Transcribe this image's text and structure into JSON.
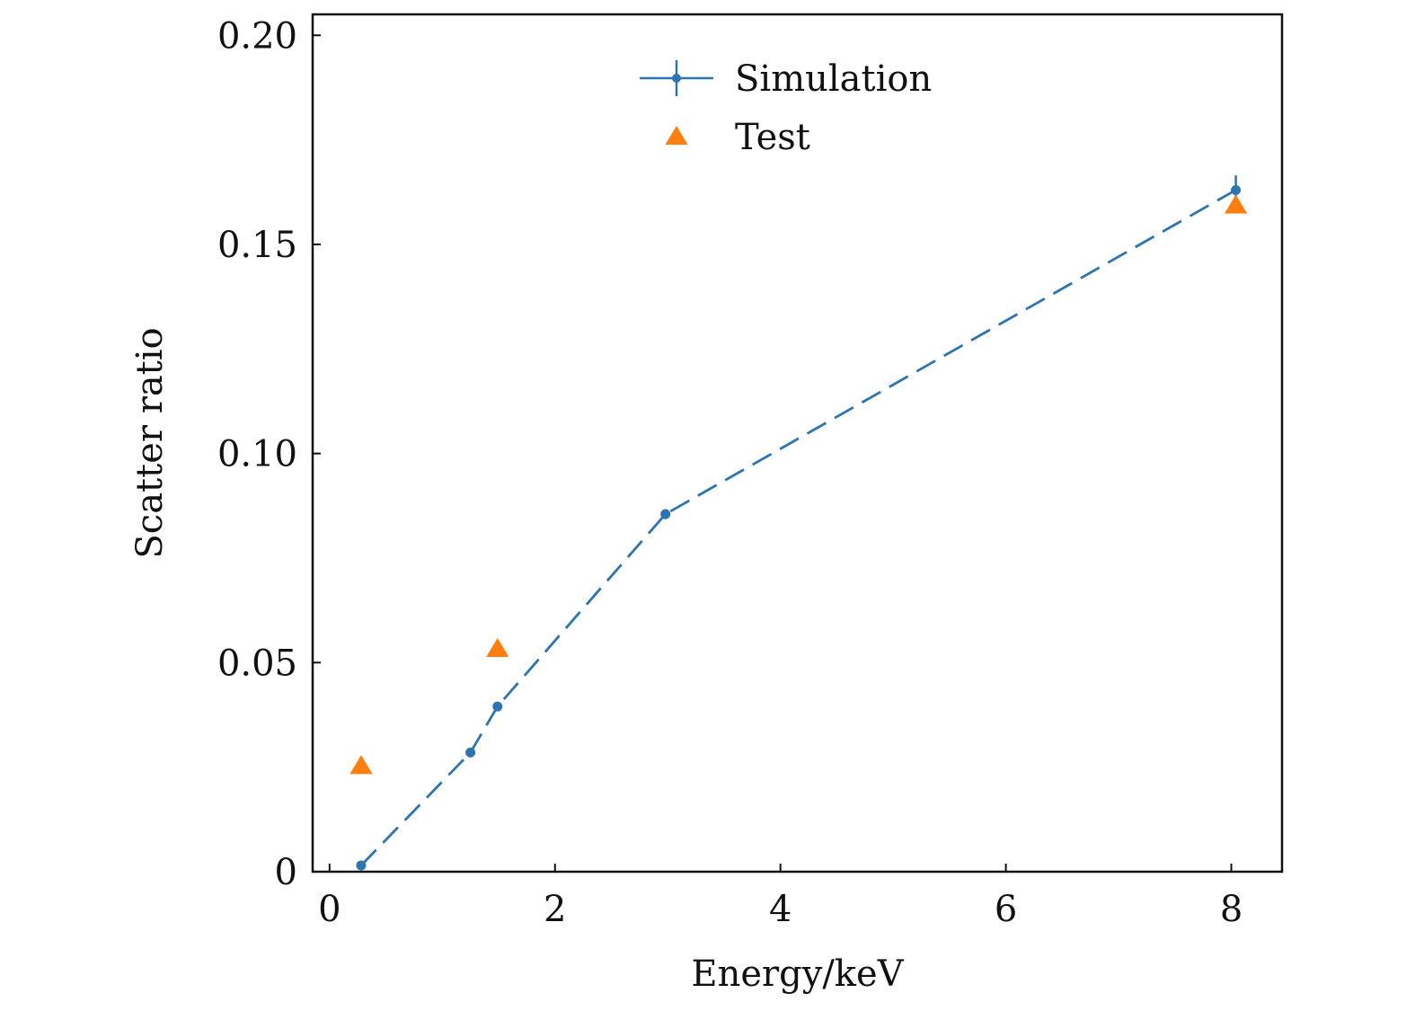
{
  "chart_data": {
    "type": "line",
    "xlabel": "Energy/keV",
    "ylabel": "Scatter ratio",
    "xlim": [
      -0.15,
      8.45
    ],
    "ylim": [
      0,
      0.205
    ],
    "x_ticks": [
      0,
      2,
      4,
      6,
      8
    ],
    "x_tick_labels": [
      "0",
      "2",
      "4",
      "6",
      "8"
    ],
    "y_ticks": [
      0,
      0.05,
      0.1,
      0.15,
      0.2
    ],
    "y_tick_labels": [
      "0",
      "0.05",
      "0.10",
      "0.15",
      "0.20"
    ],
    "grid": false,
    "legend_position": "top-center",
    "series": [
      {
        "name": "Simulation",
        "kind": "line-errorbar",
        "color": "#2e75b0",
        "line_style": "dashed",
        "marker": "circle",
        "x": [
          0.28,
          1.25,
          1.49,
          2.98,
          8.04
        ],
        "y": [
          0.0015,
          0.0285,
          0.0395,
          0.0855,
          0.163
        ],
        "yerr": [
          0.0005,
          0.0007,
          0.0008,
          0.0012,
          0.0035
        ]
      },
      {
        "name": "Test",
        "kind": "scatter",
        "color": "#ff7f0e",
        "marker": "triangle",
        "x": [
          0.28,
          1.49,
          8.04
        ],
        "y": [
          0.0253,
          0.0533,
          0.1593
        ]
      }
    ]
  }
}
